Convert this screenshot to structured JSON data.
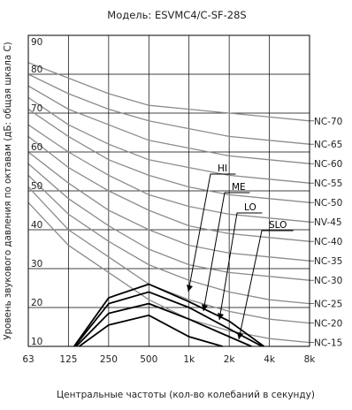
{
  "chart_data": {
    "type": "line",
    "title": "Модель: ESVMC4/C-SF-28S",
    "xlabel": "Центральные частоты (кол-во колебаний в секунду)",
    "ylabel": "Уровень звукового давления по октавам (дБ: общая шкала С)",
    "x": [
      "63",
      "125",
      "250",
      "500",
      "1k",
      "2k",
      "4k",
      "8k"
    ],
    "ylim": [
      10,
      90
    ],
    "yticks": [
      10,
      20,
      30,
      40,
      50,
      60,
      70,
      80,
      90
    ],
    "grid": true,
    "nc_curves": [
      {
        "label": "NC-70",
        "values": [
          83,
          79,
          75,
          72,
          71,
          70,
          69,
          68
        ]
      },
      {
        "label": "NC-65",
        "values": [
          80,
          75,
          71,
          68,
          66,
          64,
          63,
          62
        ]
      },
      {
        "label": "NC-60",
        "values": [
          77,
          71,
          67,
          63,
          61,
          59,
          58,
          57
        ]
      },
      {
        "label": "NC-55",
        "values": [
          74,
          67,
          62,
          58,
          56,
          54,
          53,
          52
        ]
      },
      {
        "label": "NC-50",
        "values": [
          71,
          64,
          58,
          54,
          51,
          49,
          48,
          47
        ]
      },
      {
        "label": "NV-45",
        "values": [
          67,
          60,
          54,
          49,
          46,
          44,
          43,
          42
        ]
      },
      {
        "label": "NC-40",
        "values": [
          64,
          56,
          50,
          45,
          41,
          39,
          38,
          37
        ]
      },
      {
        "label": "NC-35",
        "values": [
          60,
          52,
          45,
          40,
          36,
          34,
          33,
          32
        ]
      },
      {
        "label": "NC-30",
        "values": [
          57,
          48,
          41,
          35,
          31,
          29,
          28,
          27
        ]
      },
      {
        "label": "NC-25",
        "values": [
          54,
          44,
          37,
          31,
          27,
          24,
          22,
          21
        ]
      },
      {
        "label": "NC-20",
        "values": [
          51,
          40,
          33,
          26,
          22,
          19,
          17,
          16
        ]
      },
      {
        "label": "NC-15",
        "values": [
          47,
          36,
          29,
          22,
          17,
          14,
          12,
          11
        ]
      }
    ],
    "series": [
      {
        "name": "HI",
        "values": [
          0,
          8,
          22.5,
          26,
          21.5,
          16.5,
          9,
          0
        ]
      },
      {
        "name": "ME",
        "values": [
          0,
          8,
          21,
          24,
          20,
          14.5,
          9,
          0
        ]
      },
      {
        "name": "LO",
        "values": [
          0,
          8,
          18.5,
          21,
          17,
          12.5,
          8,
          0
        ]
      },
      {
        "name": "SLO",
        "values": [
          0,
          8,
          15.5,
          18,
          12.5,
          9.5,
          7,
          0
        ]
      }
    ],
    "colors": {
      "nc_curve": "#8c8c8c",
      "series": "#000000",
      "grid": "#000000"
    }
  }
}
